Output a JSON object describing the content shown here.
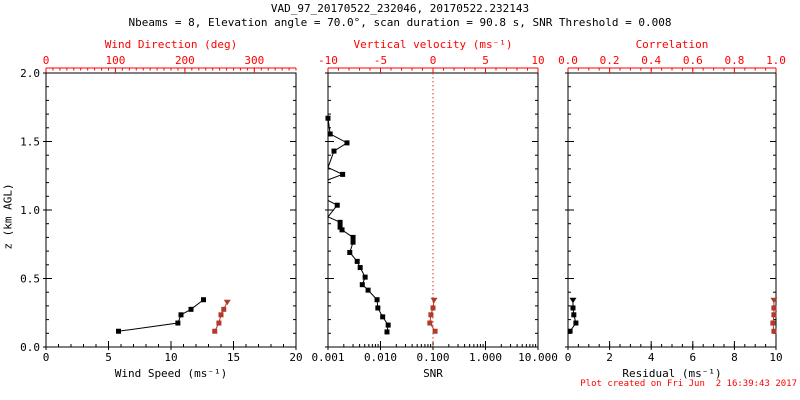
{
  "header": {
    "title": "VAD_97_20170522_232046, 20170522.232143",
    "subtitle": "Nbeams = 8, Elevation angle = 70.0°, scan duration = 90.8 s, SNR Threshold = 0.008"
  },
  "footer": {
    "created": "Plot created on Fri Jun  2 16:39:43 2017"
  },
  "colors": {
    "axis_red": "#ff0000",
    "data_red": "#b23a2a",
    "refline_red": "#cf3a28",
    "black": "#000000",
    "background": "#ffffff"
  },
  "chart_data": {
    "type": "line",
    "y_axis": {
      "label": "z (km AGL)",
      "lim": [
        0,
        2
      ],
      "ticks": [
        0,
        0.5,
        1,
        1.5,
        2
      ],
      "tick_labels": [
        "0.0",
        "0.5",
        "1.0",
        "1.5",
        "2.0"
      ],
      "minor": 0.1
    },
    "panels": [
      {
        "name": "wind",
        "bottom": {
          "label": "Wind Speed (ms⁻¹)",
          "lim": [
            0,
            20
          ],
          "log": false,
          "ticks": [
            0,
            5,
            10,
            15,
            20
          ],
          "tick_labels": [
            "0",
            "5",
            "10",
            "15",
            "20"
          ],
          "minor": 1
        },
        "top": {
          "label": "Wind Direction (deg)",
          "lim": [
            0,
            360
          ],
          "log": false,
          "ticks": [
            0,
            100,
            200,
            300
          ],
          "tick_labels": [
            "0",
            "100",
            "200",
            "300"
          ],
          "minor": 10
        },
        "series": [
          {
            "name": "wind-speed",
            "axis": "bottom",
            "color": "black",
            "tri_first": false,
            "points": [
              [
                12.6,
                0.345
              ],
              [
                11.6,
                0.275
              ],
              [
                10.8,
                0.235
              ],
              [
                10.55,
                0.175
              ],
              [
                5.8,
                0.115
              ]
            ]
          },
          {
            "name": "wind-direction",
            "axis": "top",
            "color": "red",
            "tri_first": true,
            "points": [
              [
                261,
                0.33
              ],
              [
                256,
                0.275
              ],
              [
                252,
                0.235
              ],
              [
                249,
                0.175
              ],
              [
                243,
                0.115
              ]
            ]
          }
        ]
      },
      {
        "name": "snr",
        "bottom": {
          "label": "SNR",
          "lim": [
            0.001,
            10
          ],
          "log": true,
          "ticks": [
            0.001,
            0.01,
            0.1,
            1,
            10
          ],
          "tick_labels": [
            "0.001",
            "0.010",
            "0.100",
            "1.000",
            "10.000"
          ],
          "minor": "log"
        },
        "top": {
          "label": "Vertical velocity (ms⁻¹)",
          "lim": [
            -10,
            10
          ],
          "log": false,
          "ticks": [
            -10,
            -5,
            0,
            5,
            10
          ],
          "tick_labels": [
            "-10",
            "-5",
            "0",
            "5",
            "10"
          ],
          "minor": 1
        },
        "refline": {
          "axis": "top",
          "value": 0
        },
        "series": [
          {
            "name": "snr-profile",
            "axis": "bottom",
            "color": "black",
            "tri_first": false,
            "points": [
              [
                0.001,
                1.67
              ],
              [
                0.0011,
                1.555
              ],
              [
                0.0023,
                1.49
              ],
              [
                0.0013,
                1.43
              ],
              [
                0.001,
                1.31,
                0
              ],
              [
                0.0019,
                1.26
              ],
              [
                0.001,
                1.22,
                0
              ],
              [
                0.001,
                1.07,
                0
              ],
              [
                0.0015,
                1.035
              ],
              [
                0.001,
                0.95,
                0
              ],
              [
                0.0017,
                0.91
              ],
              [
                0.0017,
                0.875
              ],
              [
                0.00185,
                0.855
              ],
              [
                0.003,
                0.8
              ],
              [
                0.003,
                0.765
              ],
              [
                0.0026,
                0.69
              ],
              [
                0.0036,
                0.625
              ],
              [
                0.0041,
                0.58
              ],
              [
                0.0051,
                0.51
              ],
              [
                0.0045,
                0.455
              ],
              [
                0.0058,
                0.415
              ],
              [
                0.0086,
                0.345
              ],
              [
                0.0089,
                0.285
              ],
              [
                0.011,
                0.22
              ],
              [
                0.014,
                0.16
              ],
              [
                0.0133,
                0.11
              ]
            ]
          },
          {
            "name": "vertical-velocity",
            "axis": "top",
            "color": "red",
            "tri_first": true,
            "points": [
              [
                0.1,
                0.345
              ],
              [
                0.0,
                0.285
              ],
              [
                -0.2,
                0.235
              ],
              [
                -0.3,
                0.175
              ],
              [
                0.2,
                0.115
              ]
            ]
          }
        ]
      },
      {
        "name": "residual",
        "bottom": {
          "label": "Residual (ms⁻¹)",
          "lim": [
            0,
            10
          ],
          "log": false,
          "ticks": [
            0,
            2,
            4,
            6,
            8,
            10
          ],
          "tick_labels": [
            "0",
            "2",
            "4",
            "6",
            "8",
            "10"
          ],
          "minor": 0.5
        },
        "top": {
          "label": "Correlation",
          "lim": [
            0,
            1
          ],
          "log": false,
          "ticks": [
            0,
            0.2,
            0.4,
            0.6,
            0.8,
            1
          ],
          "tick_labels": [
            "0.0",
            "0.2",
            "0.4",
            "0.6",
            "0.8",
            "1.0"
          ],
          "minor": 0.05
        },
        "series": [
          {
            "name": "residual",
            "axis": "bottom",
            "color": "black",
            "tri_first": true,
            "points": [
              [
                0.24,
                0.345
              ],
              [
                0.24,
                0.285
              ],
              [
                0.28,
                0.235
              ],
              [
                0.38,
                0.175
              ],
              [
                0.1,
                0.115
              ]
            ]
          },
          {
            "name": "correlation",
            "axis": "top",
            "color": "red",
            "tri_first": true,
            "points": [
              [
                0.99,
                0.345
              ],
              [
                0.99,
                0.285
              ],
              [
                0.99,
                0.235
              ],
              [
                0.985,
                0.175
              ],
              [
                0.99,
                0.115
              ]
            ]
          }
        ]
      }
    ]
  }
}
